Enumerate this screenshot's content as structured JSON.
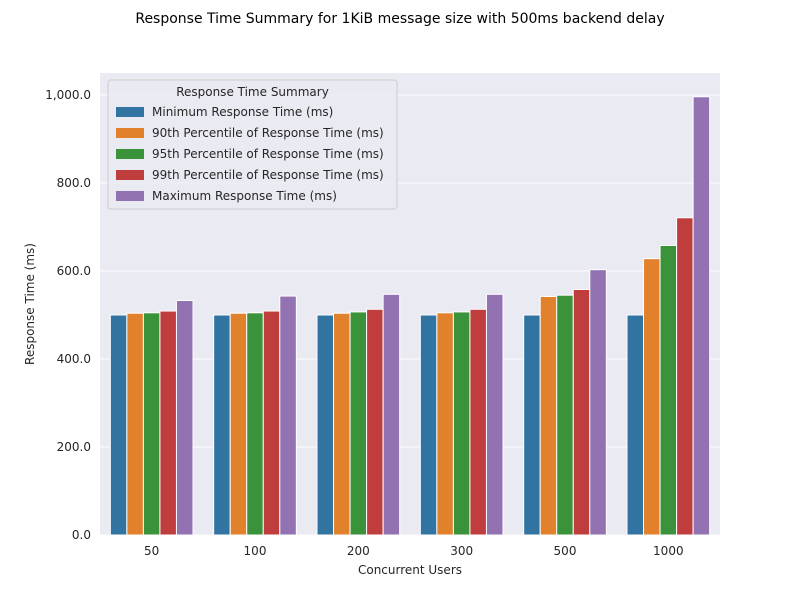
{
  "chart_data": {
    "type": "bar",
    "title": "Response Time Summary for 1KiB message size with 500ms backend delay",
    "xlabel": "Concurrent Users",
    "ylabel": "Response Time (ms)",
    "categories": [
      "50",
      "100",
      "200",
      "300",
      "500",
      "1000"
    ],
    "ylim": [
      0,
      1050
    ],
    "yticks": [
      0,
      200,
      400,
      600,
      800,
      1000
    ],
    "ytick_labels": [
      "0.0",
      "200.0",
      "400.0",
      "600.0",
      "800.0",
      "1,000.0"
    ],
    "grid": true,
    "legend": {
      "title": "Response Time Summary",
      "placement": "upper-left"
    },
    "series": [
      {
        "name": "Minimum Response Time (ms)",
        "color": "#3274a1",
        "values": [
          500,
          500,
          500,
          500,
          500,
          500
        ]
      },
      {
        "name": "90th Percentile of Response Time (ms)",
        "color": "#e1812c",
        "values": [
          504,
          504,
          504,
          505,
          542,
          628
        ]
      },
      {
        "name": "95th Percentile of Response Time (ms)",
        "color": "#3a923a",
        "values": [
          505,
          505,
          507,
          507,
          545,
          658
        ]
      },
      {
        "name": "99th Percentile of Response Time (ms)",
        "color": "#c03d3e",
        "values": [
          509,
          509,
          513,
          513,
          558,
          721
        ]
      },
      {
        "name": "Maximum Response Time (ms)",
        "color": "#9372b2",
        "values": [
          533,
          543,
          547,
          547,
          603,
          996
        ]
      }
    ]
  }
}
